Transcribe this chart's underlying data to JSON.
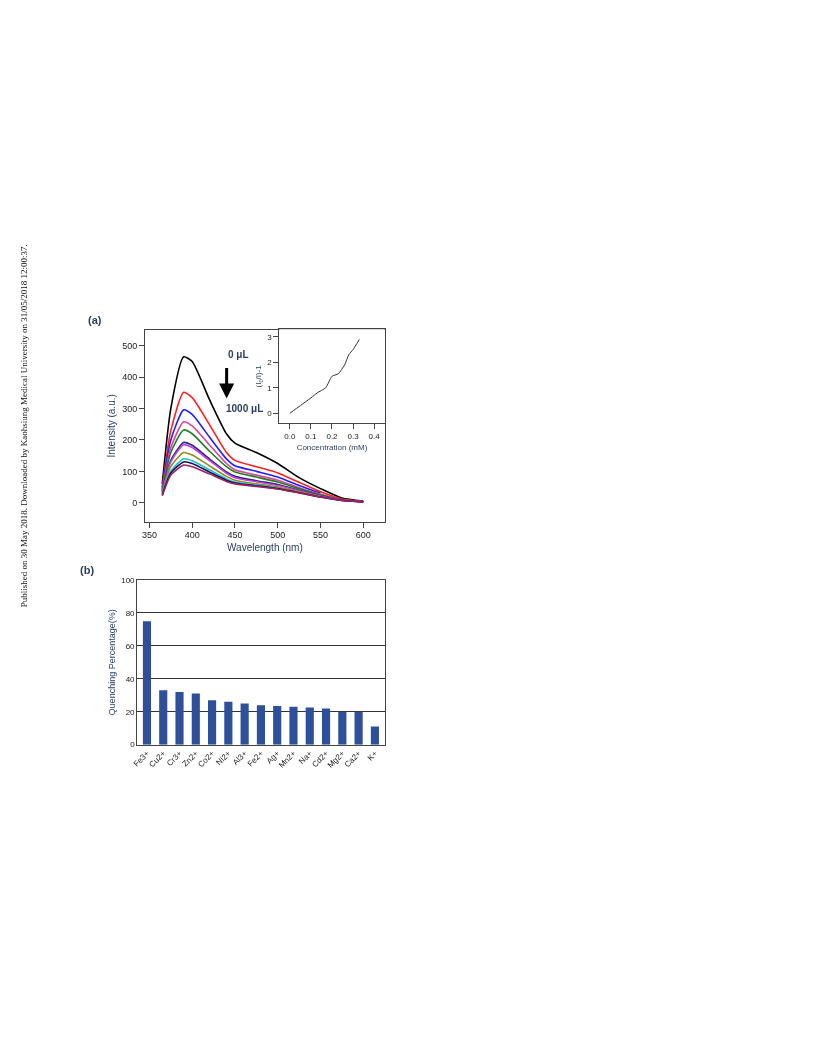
{
  "chart_data": [
    {
      "type": "line",
      "title": "(a)",
      "xlabel": "Wavelength (nm)",
      "ylabel": "Intensity (a.u.)",
      "x": [
        365,
        375,
        390,
        400,
        420,
        440,
        450,
        475,
        500,
        525,
        550,
        575,
        600
      ],
      "series": [
        {
          "color": "#000000",
          "values": [
            60,
            300,
            465,
            450,
            330,
            220,
            190,
            160,
            125,
            80,
            45,
            15,
            5
          ]
        },
        {
          "color": "#ff2020",
          "values": [
            50,
            230,
            352,
            335,
            250,
            160,
            135,
            115,
            95,
            65,
            35,
            12,
            4
          ]
        },
        {
          "color": "#2020ff",
          "values": [
            45,
            200,
            296,
            282,
            210,
            140,
            118,
            100,
            82,
            55,
            30,
            null,
            null
          ]
        },
        {
          "color": "#e040a0",
          "values": [
            40,
            175,
            258,
            245,
            185,
            125,
            105,
            88,
            72,
            48,
            27,
            9,
            3
          ]
        },
        {
          "color": "#208020",
          "values": [
            38,
            160,
            232,
            220,
            165,
            115,
            98,
            82,
            66,
            45,
            25,
            9,
            3
          ]
        },
        {
          "color": "#302080",
          "values": [
            35,
            135,
            192,
            183,
            140,
            98,
            84,
            70,
            58,
            40,
            22,
            8,
            3
          ]
        },
        {
          "color": "#c040e0",
          "values": [
            33,
            130,
            185,
            176,
            135,
            94,
            80,
            67,
            55,
            38,
            21,
            8,
            3
          ]
        },
        {
          "color": "#909020",
          "values": [
            30,
            115,
            160,
            152,
            118,
            84,
            72,
            60,
            50,
            35,
            20,
            null,
            null
          ]
        },
        {
          "color": "#20c0c0",
          "values": [
            28,
            100,
            140,
            134,
            105,
            76,
            66,
            56,
            47,
            null,
            null,
            null,
            null
          ]
        },
        {
          "color": "#101060",
          "values": [
            25,
            95,
            130,
            125,
            98,
            72,
            63,
            54,
            45,
            32,
            18,
            7,
            3
          ]
        },
        {
          "color": "#a02060",
          "values": [
            22,
            88,
            120,
            115,
            92,
            68,
            60,
            52,
            44,
            31,
            18,
            7,
            3
          ]
        }
      ],
      "xlim": [
        345,
        625
      ],
      "xticks": [
        350,
        400,
        450,
        500,
        550,
        600
      ],
      "ylim": [
        -60,
        550
      ],
      "yticks": [
        0,
        100,
        200,
        300,
        400,
        500
      ],
      "grid": false,
      "marker": "none",
      "line_style": "solid",
      "annotations": [
        "0 μL",
        "1000 μL",
        "Published on 30 May 2018. Downloaded by Kaohsiung Medical University on 31/05/2018 12:00:37."
      ]
    },
    {
      "type": "line",
      "xlabel": "Concentration (mM)",
      "ylabel": "(I$_{0}$/I)-1",
      "x": [
        0,
        0.05,
        0.1,
        0.13,
        0.17,
        0.2,
        0.23,
        0.26,
        0.28,
        0.3,
        0.33
      ],
      "series": [
        {
          "color": "#333333",
          "values": [
            0,
            0.3,
            0.6,
            0.8,
            1.0,
            1.45,
            1.55,
            1.9,
            2.3,
            2.5,
            2.9
          ]
        }
      ],
      "xlim": [
        -0.05,
        0.45
      ],
      "xticks": [
        {
          "value": 0,
          "label": "0.0"
        },
        0.1,
        0.2,
        0.3,
        0.4
      ],
      "ylim": [
        -0.4,
        3.3
      ],
      "yticks": [
        0,
        1,
        2,
        3
      ],
      "grid": false,
      "marker": "none",
      "line_style": "solid"
    },
    {
      "type": "bar",
      "title": "(b)",
      "ylabel": "Quenching Percentage(%)",
      "categories": [
        "Fe3+",
        "Cu2+",
        "Cr3+",
        "Zn2+",
        "Co2+",
        "Ni2+",
        "Al3+",
        "Fe2+",
        "Ag+",
        "Mn2+",
        "Na+",
        "Cd2+",
        "Mg2+",
        "Ca2+",
        "K+"
      ],
      "values": [
        75,
        33,
        32,
        31,
        27,
        26,
        25,
        24,
        23.5,
        23,
        22.5,
        22,
        20,
        20,
        11
      ],
      "color": "#2e4f9a",
      "ylim": [
        0,
        100
      ],
      "yticks": [
        0,
        20,
        40,
        60,
        80,
        100
      ],
      "grid": "y"
    }
  ]
}
